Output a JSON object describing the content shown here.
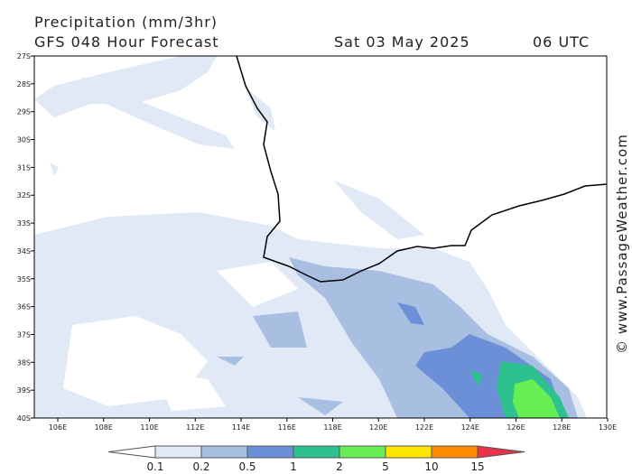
{
  "header": {
    "title": "Precipitation (mm/3hr)",
    "subtitle": "GFS 048 Hour Forecast",
    "date": "Sat 03 May 2025",
    "time": "06 UTC"
  },
  "axes": {
    "lat_labels": [
      "27S",
      "28S",
      "29S",
      "30S",
      "31S",
      "32S",
      "33S",
      "34S",
      "35S",
      "36S",
      "37S",
      "38S",
      "39S",
      "40S"
    ],
    "lon_labels": [
      "106E",
      "108E",
      "110E",
      "112E",
      "114E",
      "116E",
      "118E",
      "120E",
      "122E",
      "124E",
      "126E",
      "128E",
      "130E"
    ]
  },
  "legend": {
    "labels": [
      "0.1",
      "0.2",
      "0.5",
      "1",
      "2",
      "5",
      "10",
      "15"
    ],
    "colors": [
      "#ffffff",
      "#e1e9f6",
      "#a9bfe2",
      "#6b90d8",
      "#2ec08e",
      "#66ee55",
      "#ffe600",
      "#ff8c00",
      "#e8334a"
    ]
  },
  "credit": "© www.PassageWeather.com"
}
